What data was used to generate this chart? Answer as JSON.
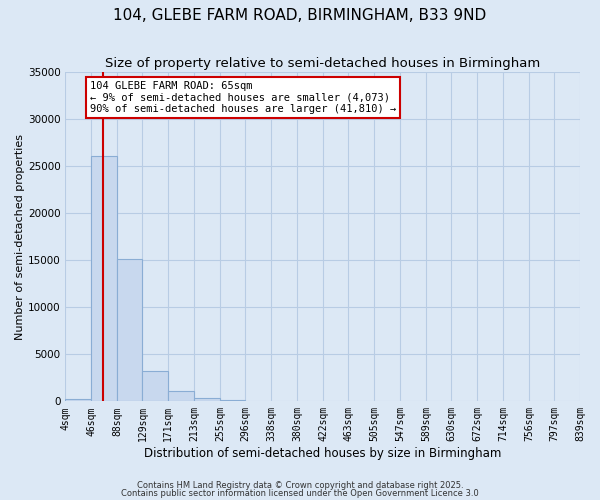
{
  "title": "104, GLEBE FARM ROAD, BIRMINGHAM, B33 9ND",
  "subtitle": "Size of property relative to semi-detached houses in Birmingham",
  "xlabel": "Distribution of semi-detached houses by size in Birmingham",
  "ylabel": "Number of semi-detached properties",
  "bar_edges": [
    4,
    46,
    88,
    129,
    171,
    213,
    255,
    296,
    338,
    380,
    422,
    463,
    505,
    547,
    589,
    630,
    672,
    714,
    756,
    797,
    839
  ],
  "bar_heights": [
    300,
    26000,
    15100,
    3200,
    1100,
    400,
    150,
    0,
    0,
    0,
    0,
    0,
    0,
    0,
    0,
    0,
    0,
    0,
    0,
    0
  ],
  "bar_color": "#c8d8ee",
  "bar_edge_color": "#8aadd4",
  "red_line_x": 65,
  "ylim": [
    0,
    35000
  ],
  "yticks": [
    0,
    5000,
    10000,
    15000,
    20000,
    25000,
    30000,
    35000
  ],
  "annotation_text": "104 GLEBE FARM ROAD: 65sqm\n← 9% of semi-detached houses are smaller (4,073)\n90% of semi-detached houses are larger (41,810) →",
  "annotation_box_color": "#ffffff",
  "annotation_border_color": "#cc0000",
  "footer1": "Contains HM Land Registry data © Crown copyright and database right 2025.",
  "footer2": "Contains public sector information licensed under the Open Government Licence 3.0",
  "fig_background_color": "#dce8f5",
  "plot_background_color": "#dce8f5",
  "grid_color": "#b8cce4",
  "title_fontsize": 11,
  "subtitle_fontsize": 9.5,
  "tick_label_fontsize": 7,
  "ylabel_fontsize": 8,
  "xlabel_fontsize": 8.5
}
